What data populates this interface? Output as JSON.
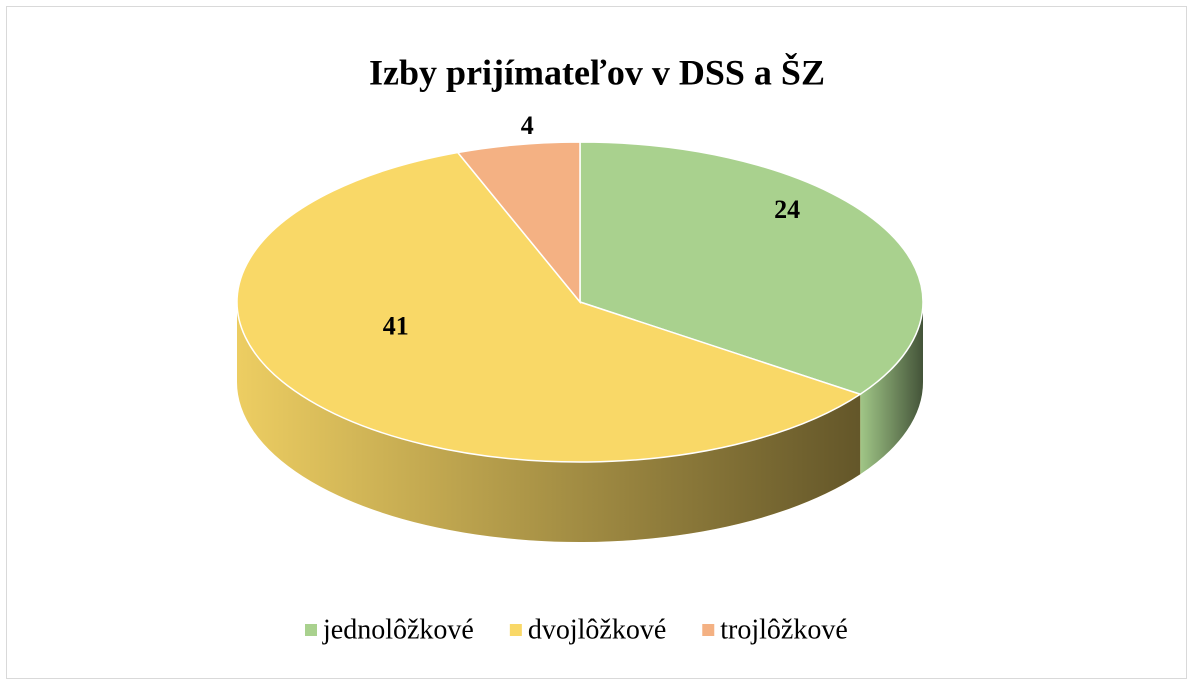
{
  "chart_data": {
    "type": "pie",
    "title": "Izby prijímateľov v DSS a ŠZ",
    "categories": [
      "jednolôžkové",
      "dvojlôžkové",
      "trojlôžkové"
    ],
    "values": [
      24,
      41,
      4
    ],
    "colors": [
      "#a9d18e",
      "#f9d867",
      "#f4b183"
    ],
    "legend": "bottom"
  }
}
